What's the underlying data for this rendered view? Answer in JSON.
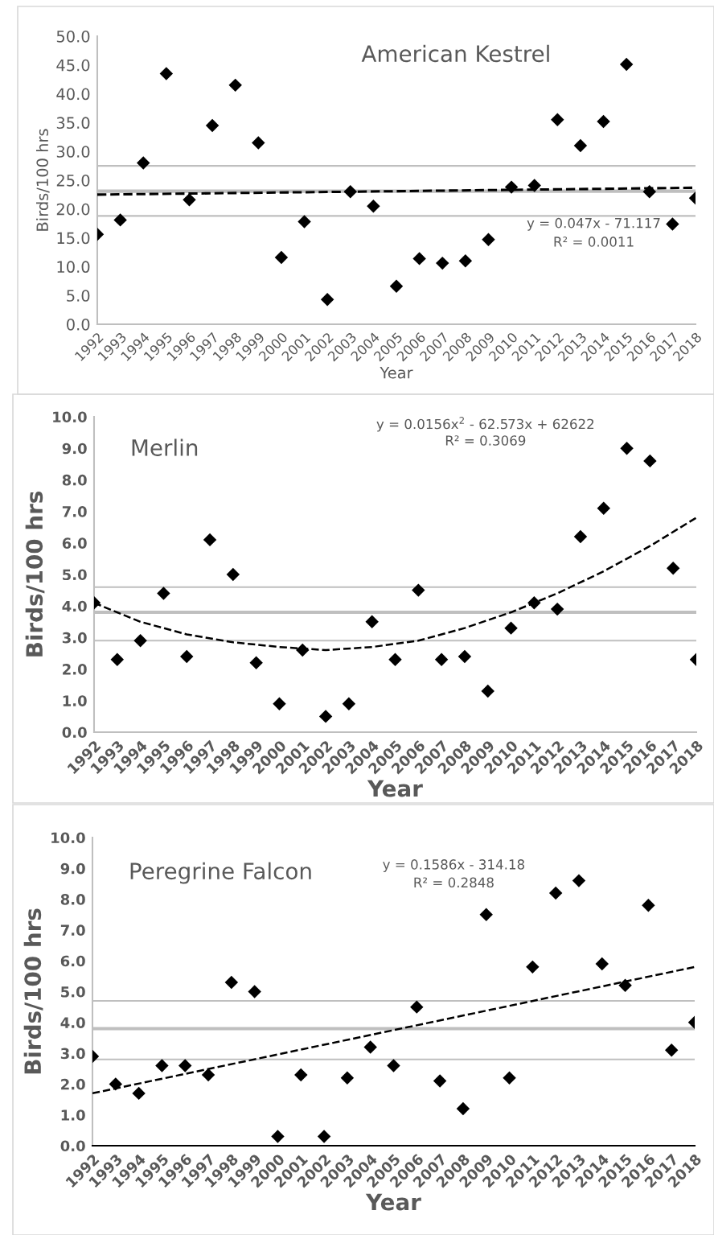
{
  "chart_data": [
    {
      "type": "scatter",
      "title": "American Kestrel",
      "xlabel": "Year",
      "ylabel": "Birds/100 hrs",
      "x": [
        1992,
        1993,
        1994,
        1995,
        1996,
        1997,
        1998,
        1999,
        2000,
        2001,
        2002,
        2003,
        2004,
        2005,
        2006,
        2007,
        2008,
        2009,
        2010,
        2011,
        2012,
        2013,
        2014,
        2015,
        2016,
        2017,
        2018
      ],
      "series": [
        {
          "color": "#000000",
          "marker": "diamond",
          "values": [
            15.6,
            18.1,
            28.0,
            43.5,
            21.6,
            34.5,
            41.5,
            31.5,
            11.6,
            17.8,
            4.3,
            23.0,
            20.5,
            6.6,
            11.4,
            10.6,
            11.0,
            14.7,
            23.8,
            24.1,
            35.5,
            31.0,
            35.2,
            45.1,
            23.0,
            17.4,
            21.9
          ]
        },
        {
          "type": "line",
          "color": "#000000",
          "line_style": "dashed",
          "x": [
            1992,
            2018
          ],
          "values": [
            22.5,
            23.7
          ]
        }
      ],
      "xlim": [
        1992,
        2018
      ],
      "xticks": [
        1992,
        1993,
        1994,
        1995,
        1996,
        1997,
        1998,
        1999,
        2000,
        2001,
        2002,
        2003,
        2004,
        2005,
        2006,
        2007,
        2008,
        2009,
        2010,
        2011,
        2012,
        2013,
        2014,
        2015,
        2016,
        2017,
        2018
      ],
      "ylim": [
        0,
        50
      ],
      "yticks": [
        {
          "value": 0,
          "label": "0.0"
        },
        {
          "value": 5,
          "label": "5.0"
        },
        {
          "value": 10,
          "label": "10.0"
        },
        {
          "value": 15,
          "label": "15.0"
        },
        {
          "value": 20,
          "label": "20.0"
        },
        {
          "value": 25,
          "label": "25.0"
        },
        {
          "value": 30,
          "label": "30.0"
        },
        {
          "value": 35,
          "label": "35.0"
        },
        {
          "value": 40,
          "label": "40.0"
        },
        {
          "value": 45,
          "label": "45.0"
        },
        {
          "value": 50,
          "label": "50.0"
        }
      ],
      "ref_lines": [
        {
          "axis": "y",
          "value": 27.5,
          "color": "#bfbfbf"
        },
        {
          "axis": "y",
          "value": 23.1,
          "color": "#bfbfbf"
        },
        {
          "axis": "y",
          "value": 18.8,
          "color": "#bfbfbf"
        }
      ],
      "annotations": [
        "y = 0.047x - 71.117",
        "R² = 0.0011"
      ]
    },
    {
      "type": "scatter",
      "title": "Merlin",
      "xlabel": "Year",
      "ylabel": "Birds/100 hrs",
      "x": [
        1992,
        1993,
        1994,
        1995,
        1996,
        1997,
        1998,
        1999,
        2000,
        2001,
        2002,
        2003,
        2004,
        2005,
        2006,
        2007,
        2008,
        2009,
        2010,
        2011,
        2012,
        2013,
        2014,
        2015,
        2016,
        2017,
        2018
      ],
      "series": [
        {
          "color": "#000000",
          "marker": "diamond",
          "values": [
            4.1,
            2.3,
            2.9,
            4.4,
            2.4,
            6.1,
            5.0,
            2.2,
            0.9,
            2.6,
            0.5,
            0.9,
            3.5,
            2.3,
            4.5,
            2.3,
            2.4,
            1.3,
            3.3,
            4.1,
            3.9,
            6.2,
            7.1,
            9.0,
            8.6,
            5.2,
            2.3
          ]
        },
        {
          "type": "line",
          "color": "#000000",
          "line_style": "dashed",
          "x": [
            1992,
            1994,
            1996,
            1998,
            2000,
            2002,
            2004,
            2006,
            2008,
            2010,
            2012,
            2014,
            2016,
            2018
          ],
          "values": [
            4.1,
            3.5,
            3.1,
            2.85,
            2.7,
            2.6,
            2.7,
            2.9,
            3.3,
            3.8,
            4.4,
            5.1,
            5.9,
            6.8
          ]
        }
      ],
      "xlim": [
        1992,
        2018
      ],
      "xticks": [
        1992,
        1993,
        1994,
        1995,
        1996,
        1997,
        1998,
        1999,
        2000,
        2001,
        2002,
        2003,
        2004,
        2005,
        2006,
        2007,
        2008,
        2009,
        2010,
        2011,
        2012,
        2013,
        2014,
        2015,
        2016,
        2017,
        2018
      ],
      "ylim": [
        0,
        10
      ],
      "yticks": [
        {
          "value": 0,
          "label": "0.0"
        },
        {
          "value": 1,
          "label": "1.0"
        },
        {
          "value": 2,
          "label": "2.0"
        },
        {
          "value": 3,
          "label": "3.0"
        },
        {
          "value": 4,
          "label": "4.0"
        },
        {
          "value": 5,
          "label": "5.0"
        },
        {
          "value": 6,
          "label": "6.0"
        },
        {
          "value": 7,
          "label": "7.0"
        },
        {
          "value": 8,
          "label": "8.0"
        },
        {
          "value": 9,
          "label": "9.0"
        },
        {
          "value": 10,
          "label": "10.0"
        }
      ],
      "ref_lines": [
        {
          "axis": "y",
          "value": 4.6,
          "color": "#bfbfbf"
        },
        {
          "axis": "y",
          "value": 3.8,
          "color": "#bfbfbf"
        },
        {
          "axis": "y",
          "value": 2.9,
          "color": "#bfbfbf"
        }
      ],
      "annotations": [
        "y = 0.0156x$^{2}$ - 62.573x + 62622",
        "R² = 0.3069"
      ]
    },
    {
      "type": "scatter",
      "title": "Peregrine Falcon",
      "xlabel": "Year",
      "ylabel": "Birds/100 hrs",
      "x": [
        1992,
        1993,
        1994,
        1995,
        1996,
        1997,
        1998,
        1999,
        2000,
        2001,
        2002,
        2003,
        2004,
        2005,
        2006,
        2007,
        2008,
        2009,
        2010,
        2011,
        2012,
        2013,
        2014,
        2015,
        2016,
        2017,
        2018
      ],
      "series": [
        {
          "color": "#000000",
          "marker": "diamond",
          "values": [
            2.9,
            2.0,
            1.7,
            2.6,
            2.6,
            2.3,
            5.3,
            5.0,
            0.3,
            2.3,
            0.3,
            2.2,
            3.2,
            2.6,
            4.5,
            2.1,
            1.2,
            7.5,
            2.2,
            5.8,
            8.2,
            8.6,
            5.9,
            5.2,
            7.8,
            3.1,
            4.0
          ]
        },
        {
          "type": "line",
          "color": "#000000",
          "line_style": "dashed",
          "x": [
            1992,
            2018
          ],
          "values": [
            1.7,
            5.8
          ]
        }
      ],
      "xlim": [
        1992,
        2018
      ],
      "xticks": [
        1992,
        1993,
        1994,
        1995,
        1996,
        1997,
        1998,
        1999,
        2000,
        2001,
        2002,
        2003,
        2004,
        2005,
        2006,
        2007,
        2008,
        2009,
        2010,
        2011,
        2012,
        2013,
        2014,
        2015,
        2016,
        2017,
        2018
      ],
      "ylim": [
        0,
        10
      ],
      "yticks": [
        {
          "value": 0,
          "label": "0.0"
        },
        {
          "value": 1,
          "label": "1.0"
        },
        {
          "value": 2,
          "label": "2.0"
        },
        {
          "value": 3,
          "label": "3.0"
        },
        {
          "value": 4,
          "label": "4.0"
        },
        {
          "value": 5,
          "label": "5.0"
        },
        {
          "value": 6,
          "label": "6.0"
        },
        {
          "value": 7,
          "label": "7.0"
        },
        {
          "value": 8,
          "label": "8.0"
        },
        {
          "value": 9,
          "label": "9.0"
        },
        {
          "value": 10,
          "label": "10.0"
        }
      ],
      "ref_lines": [
        {
          "axis": "y",
          "value": 4.7,
          "color": "#bfbfbf"
        },
        {
          "axis": "y",
          "value": 3.8,
          "color": "#bfbfbf"
        },
        {
          "axis": "y",
          "value": 2.8,
          "color": "#bfbfbf"
        }
      ],
      "annotations": [
        "y = 0.1586x - 314.18",
        "R² = 0.2848"
      ]
    }
  ]
}
